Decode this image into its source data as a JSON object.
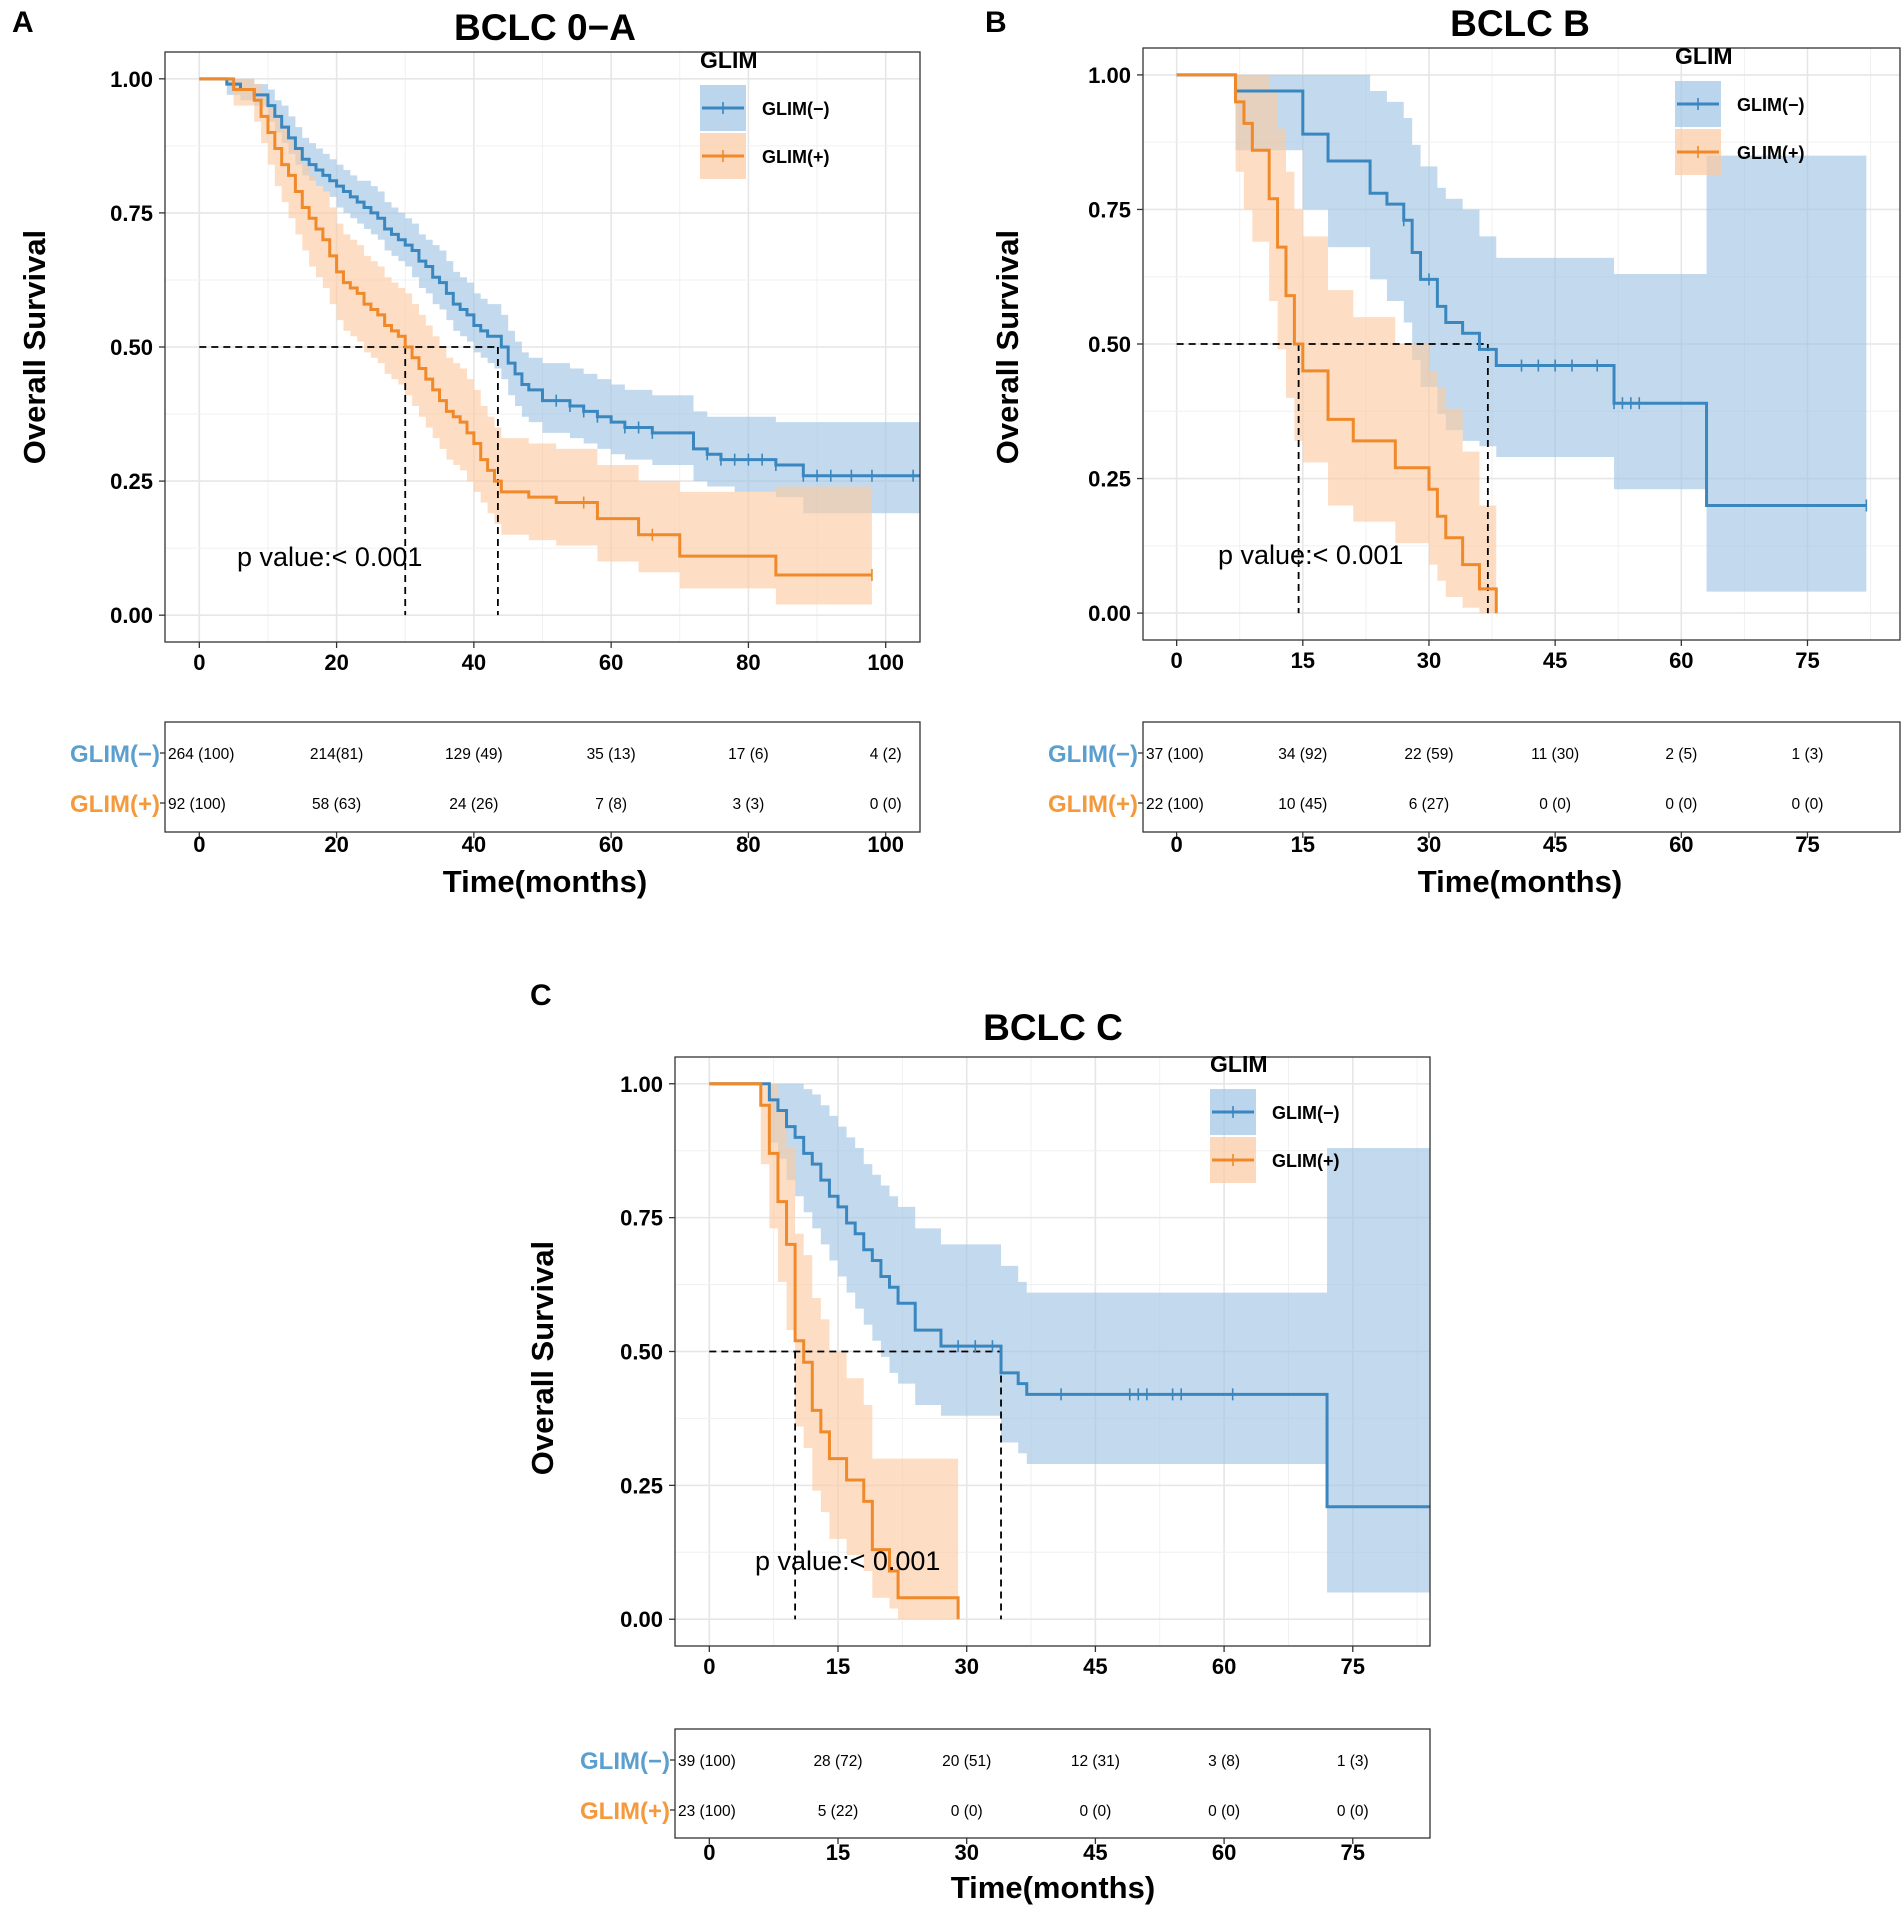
{
  "colors": {
    "neg": "#3a87c0",
    "neg_band": "#9ec4e4",
    "pos": "#f0892a",
    "pos_band": "#fbc9a0",
    "neg_label": "#5b9fcf",
    "pos_label": "#f59a3c",
    "grid": "#e6e6e6"
  },
  "chart_data": [
    {
      "panel": "A",
      "type": "line",
      "title": "BCLC 0−A",
      "ylabel": "Overall Survival",
      "xlabel": "Time(months)",
      "xlim": [
        -5,
        105
      ],
      "xticks": [
        0,
        20,
        40,
        60,
        80,
        100
      ],
      "ylim": [
        -0.05,
        1.05
      ],
      "yticks": [
        "0.00",
        "0.25",
        "0.50",
        "0.75",
        "1.00"
      ],
      "legend_title": "GLIM",
      "p_value": "p value:< 0.001",
      "median_lines": [
        30,
        43.5
      ],
      "series": [
        {
          "name": "GLIM(−)",
          "key": "neg",
          "t": [
            0,
            4,
            6,
            8,
            10,
            11,
            12,
            13,
            14,
            15,
            16,
            17,
            18,
            19,
            20,
            21,
            22,
            23,
            24,
            25,
            26,
            27,
            28,
            29,
            30,
            31,
            32,
            33,
            34,
            35,
            36,
            37,
            38,
            39,
            40,
            41,
            42,
            43,
            44,
            45,
            46,
            47,
            48,
            50,
            52,
            54,
            56,
            58,
            60,
            62,
            64,
            66,
            68,
            70,
            72,
            74,
            76,
            78,
            80,
            84,
            88,
            105
          ],
          "s": [
            1,
            0.99,
            0.98,
            0.97,
            0.95,
            0.93,
            0.91,
            0.89,
            0.87,
            0.85,
            0.84,
            0.83,
            0.82,
            0.81,
            0.8,
            0.79,
            0.78,
            0.77,
            0.76,
            0.75,
            0.74,
            0.72,
            0.71,
            0.7,
            0.69,
            0.68,
            0.66,
            0.65,
            0.63,
            0.62,
            0.6,
            0.58,
            0.57,
            0.56,
            0.54,
            0.53,
            0.52,
            0.52,
            0.5,
            0.47,
            0.45,
            0.43,
            0.42,
            0.4,
            0.4,
            0.39,
            0.38,
            0.37,
            0.36,
            0.35,
            0.35,
            0.34,
            0.34,
            0.34,
            0.31,
            0.3,
            0.29,
            0.29,
            0.29,
            0.28,
            0.26,
            0.26
          ],
          "lo": [
            1,
            0.97,
            0.96,
            0.95,
            0.92,
            0.9,
            0.88,
            0.86,
            0.84,
            0.82,
            0.81,
            0.8,
            0.79,
            0.78,
            0.76,
            0.75,
            0.74,
            0.73,
            0.72,
            0.71,
            0.7,
            0.68,
            0.67,
            0.66,
            0.65,
            0.63,
            0.61,
            0.6,
            0.58,
            0.57,
            0.55,
            0.53,
            0.52,
            0.51,
            0.49,
            0.48,
            0.47,
            0.46,
            0.44,
            0.41,
            0.39,
            0.37,
            0.36,
            0.34,
            0.34,
            0.33,
            0.32,
            0.31,
            0.3,
            0.29,
            0.29,
            0.28,
            0.28,
            0.28,
            0.25,
            0.24,
            0.24,
            0.23,
            0.23,
            0.22,
            0.19,
            0.19
          ],
          "hi": [
            1,
            1.0,
            1.0,
            0.99,
            0.98,
            0.96,
            0.95,
            0.93,
            0.91,
            0.89,
            0.88,
            0.87,
            0.86,
            0.85,
            0.84,
            0.83,
            0.82,
            0.81,
            0.81,
            0.8,
            0.79,
            0.77,
            0.76,
            0.75,
            0.74,
            0.73,
            0.71,
            0.7,
            0.69,
            0.68,
            0.66,
            0.64,
            0.63,
            0.62,
            0.6,
            0.59,
            0.58,
            0.58,
            0.56,
            0.53,
            0.51,
            0.49,
            0.48,
            0.47,
            0.47,
            0.46,
            0.45,
            0.44,
            0.43,
            0.42,
            0.42,
            0.41,
            0.41,
            0.41,
            0.38,
            0.37,
            0.37,
            0.37,
            0.37,
            0.36,
            0.36,
            0.36
          ],
          "censor": [
            52,
            54,
            56,
            58,
            62,
            64,
            66,
            74,
            76,
            78,
            80,
            82,
            84,
            88,
            90,
            92,
            95,
            98,
            104
          ]
        },
        {
          "name": "GLIM(+)",
          "key": "pos",
          "t": [
            0,
            5,
            8,
            9,
            10,
            11,
            12,
            13,
            14,
            15,
            16,
            17,
            18,
            19,
            20,
            21,
            22,
            23,
            24,
            25,
            26,
            27,
            28,
            29,
            30,
            31,
            32,
            33,
            34,
            35,
            36,
            37,
            38,
            39,
            40,
            41,
            42,
            43,
            44,
            48,
            52,
            58,
            60,
            64,
            70,
            84,
            98
          ],
          "s": [
            1,
            0.98,
            0.96,
            0.93,
            0.9,
            0.87,
            0.84,
            0.82,
            0.79,
            0.76,
            0.74,
            0.72,
            0.7,
            0.67,
            0.64,
            0.62,
            0.61,
            0.6,
            0.58,
            0.57,
            0.56,
            0.54,
            0.53,
            0.52,
            0.5,
            0.48,
            0.46,
            0.44,
            0.42,
            0.4,
            0.38,
            0.37,
            0.36,
            0.34,
            0.32,
            0.29,
            0.27,
            0.25,
            0.23,
            0.22,
            0.21,
            0.18,
            0.18,
            0.15,
            0.11,
            0.075,
            0.075
          ],
          "lo": [
            1,
            0.95,
            0.92,
            0.88,
            0.84,
            0.8,
            0.77,
            0.74,
            0.71,
            0.68,
            0.65,
            0.63,
            0.61,
            0.58,
            0.55,
            0.53,
            0.52,
            0.51,
            0.49,
            0.48,
            0.47,
            0.45,
            0.44,
            0.43,
            0.41,
            0.39,
            0.37,
            0.35,
            0.33,
            0.31,
            0.29,
            0.28,
            0.27,
            0.25,
            0.23,
            0.21,
            0.19,
            0.17,
            0.15,
            0.14,
            0.13,
            0.1,
            0.1,
            0.08,
            0.05,
            0.02,
            0.02
          ],
          "hi": [
            1,
            1.0,
            0.99,
            0.97,
            0.95,
            0.93,
            0.91,
            0.89,
            0.87,
            0.84,
            0.82,
            0.8,
            0.79,
            0.76,
            0.73,
            0.71,
            0.7,
            0.69,
            0.67,
            0.66,
            0.65,
            0.63,
            0.62,
            0.61,
            0.6,
            0.58,
            0.56,
            0.54,
            0.52,
            0.5,
            0.48,
            0.47,
            0.46,
            0.44,
            0.42,
            0.39,
            0.37,
            0.35,
            0.33,
            0.32,
            0.31,
            0.28,
            0.28,
            0.25,
            0.23,
            0.24,
            0.24
          ],
          "censor": [
            56,
            66,
            98
          ]
        }
      ],
      "risk_table": {
        "rows": [
          {
            "label": "GLIM(−)",
            "key": "neg",
            "values": [
              "264 (100)",
              "214(81)",
              "129 (49)",
              "35 (13)",
              "17 (6)",
              "4 (2)"
            ]
          },
          {
            "label": "GLIM(+)",
            "key": "pos",
            "values": [
              "92 (100)",
              "58 (63)",
              "24 (26)",
              "7 (8)",
              "3 (3)",
              "0 (0)"
            ]
          }
        ]
      }
    },
    {
      "panel": "B",
      "type": "line",
      "title": "BCLC B",
      "ylabel": "Overall Survival",
      "xlabel": "Time(months)",
      "xlim": [
        -4,
        86
      ],
      "xticks": [
        0,
        15,
        30,
        45,
        60,
        75
      ],
      "ylim": [
        -0.05,
        1.05
      ],
      "yticks": [
        "0.00",
        "0.25",
        "0.50",
        "0.75",
        "1.00"
      ],
      "legend_title": "GLIM",
      "p_value": "p value:< 0.001",
      "median_lines": [
        14.5,
        37
      ],
      "series": [
        {
          "name": "GLIM(−)",
          "key": "neg",
          "t": [
            0,
            6,
            7,
            15,
            18,
            23,
            25,
            27,
            28,
            29,
            31,
            32,
            34,
            36,
            38,
            52,
            63,
            82
          ],
          "s": [
            1,
            1,
            0.97,
            0.89,
            0.84,
            0.78,
            0.76,
            0.73,
            0.67,
            0.62,
            0.57,
            0.54,
            0.52,
            0.49,
            0.46,
            0.39,
            0.2,
            0.2
          ],
          "lo": [
            1,
            1,
            0.86,
            0.75,
            0.68,
            0.62,
            0.58,
            0.54,
            0.47,
            0.42,
            0.37,
            0.34,
            0.32,
            0.31,
            0.29,
            0.23,
            0.04,
            0.04
          ],
          "hi": [
            1,
            1,
            1,
            1,
            1,
            0.97,
            0.95,
            0.92,
            0.87,
            0.83,
            0.79,
            0.77,
            0.75,
            0.7,
            0.66,
            0.63,
            0.85,
            0.85
          ],
          "censor": [
            27,
            30,
            41,
            43,
            45,
            47,
            50,
            52,
            53,
            54,
            55,
            82
          ]
        },
        {
          "name": "GLIM(+)",
          "key": "pos",
          "t": [
            0,
            6,
            7,
            8,
            9,
            11,
            12,
            13,
            14,
            15,
            18,
            21,
            26,
            30,
            31,
            32,
            34,
            36,
            38
          ],
          "s": [
            1,
            1,
            0.95,
            0.91,
            0.86,
            0.77,
            0.68,
            0.59,
            0.5,
            0.45,
            0.36,
            0.32,
            0.27,
            0.23,
            0.18,
            0.14,
            0.09,
            0.045,
            0.0
          ],
          "lo": [
            1,
            1,
            0.82,
            0.75,
            0.69,
            0.58,
            0.49,
            0.4,
            0.32,
            0.28,
            0.2,
            0.17,
            0.13,
            0.09,
            0.06,
            0.03,
            0.01,
            0,
            0
          ],
          "hi": [
            1,
            1,
            1,
            1,
            1,
            0.97,
            0.9,
            0.82,
            0.75,
            0.7,
            0.6,
            0.55,
            0.5,
            0.45,
            0.42,
            0.38,
            0.3,
            0.2,
            0.2
          ],
          "censor": []
        }
      ],
      "risk_table": {
        "rows": [
          {
            "label": "GLIM(−)",
            "key": "neg",
            "values": [
              "37 (100)",
              "34 (92)",
              "22 (59)",
              "11 (30)",
              "2 (5)",
              "1 (3)"
            ]
          },
          {
            "label": "GLIM(+)",
            "key": "pos",
            "values": [
              "22 (100)",
              "10 (45)",
              "6 (27)",
              "0 (0)",
              "0 (0)",
              "0 (0)"
            ]
          }
        ]
      }
    },
    {
      "panel": "C",
      "type": "line",
      "title": "BCLC C",
      "ylabel": "Overall Survival",
      "xlabel": "Time(months)",
      "xlim": [
        -4,
        84
      ],
      "xticks": [
        0,
        15,
        30,
        45,
        60,
        75
      ],
      "ylim": [
        -0.05,
        1.05
      ],
      "yticks": [
        "0.00",
        "0.25",
        "0.50",
        "0.75",
        "1.00"
      ],
      "legend_title": "GLIM",
      "p_value": "p value:< 0.001",
      "median_lines": [
        10,
        34
      ],
      "series": [
        {
          "name": "GLIM(−)",
          "key": "neg",
          "t": [
            0,
            6,
            7,
            8,
            9,
            10,
            11,
            12,
            13,
            14,
            15,
            16,
            17,
            18,
            19,
            20,
            21,
            22,
            24,
            27,
            30,
            34,
            36,
            37,
            72,
            84
          ],
          "s": [
            1,
            1,
            0.97,
            0.95,
            0.92,
            0.9,
            0.87,
            0.85,
            0.82,
            0.79,
            0.77,
            0.74,
            0.72,
            0.69,
            0.67,
            0.64,
            0.62,
            0.59,
            0.54,
            0.51,
            0.51,
            0.46,
            0.44,
            0.42,
            0.21,
            0.21
          ],
          "lo": [
            1,
            1,
            0.89,
            0.86,
            0.82,
            0.79,
            0.76,
            0.73,
            0.7,
            0.67,
            0.64,
            0.61,
            0.58,
            0.55,
            0.52,
            0.49,
            0.46,
            0.44,
            0.4,
            0.38,
            0.38,
            0.33,
            0.31,
            0.29,
            0.05,
            0.05
          ],
          "hi": [
            1,
            1,
            1,
            1,
            1,
            1,
            0.99,
            0.98,
            0.96,
            0.94,
            0.92,
            0.9,
            0.88,
            0.85,
            0.83,
            0.81,
            0.79,
            0.77,
            0.73,
            0.7,
            0.7,
            0.66,
            0.63,
            0.61,
            0.88,
            0.88
          ],
          "censor": [
            29,
            31,
            33,
            41,
            49,
            50,
            51,
            54,
            55,
            61
          ]
        },
        {
          "name": "GLIM(+)",
          "key": "pos",
          "t": [
            0,
            5,
            6,
            7,
            8,
            9,
            10,
            11,
            12,
            13,
            14,
            16,
            18,
            19,
            21,
            22,
            29
          ],
          "s": [
            1,
            1,
            0.96,
            0.87,
            0.78,
            0.7,
            0.52,
            0.48,
            0.39,
            0.35,
            0.3,
            0.26,
            0.22,
            0.13,
            0.09,
            0.04,
            0.0
          ],
          "lo": [
            1,
            1,
            0.85,
            0.73,
            0.63,
            0.54,
            0.36,
            0.32,
            0.24,
            0.2,
            0.15,
            0.12,
            0.09,
            0.04,
            0.02,
            0.0,
            0.0
          ],
          "hi": [
            1,
            1,
            1,
            1,
            0.95,
            0.88,
            0.72,
            0.68,
            0.6,
            0.56,
            0.5,
            0.45,
            0.4,
            0.3,
            0.3,
            0.3,
            0.3
          ],
          "censor": []
        }
      ],
      "risk_table": {
        "rows": [
          {
            "label": "GLIM(−)",
            "key": "neg",
            "values": [
              "39 (100)",
              "28 (72)",
              "20 (51)",
              "12 (31)",
              "3 (8)",
              "1 (3)"
            ]
          },
          {
            "label": "GLIM(+)",
            "key": "pos",
            "values": [
              "23 (100)",
              "5 (22)",
              "0 (0)",
              "0 (0)",
              "0 (0)",
              "0 (0)"
            ]
          }
        ]
      }
    }
  ]
}
